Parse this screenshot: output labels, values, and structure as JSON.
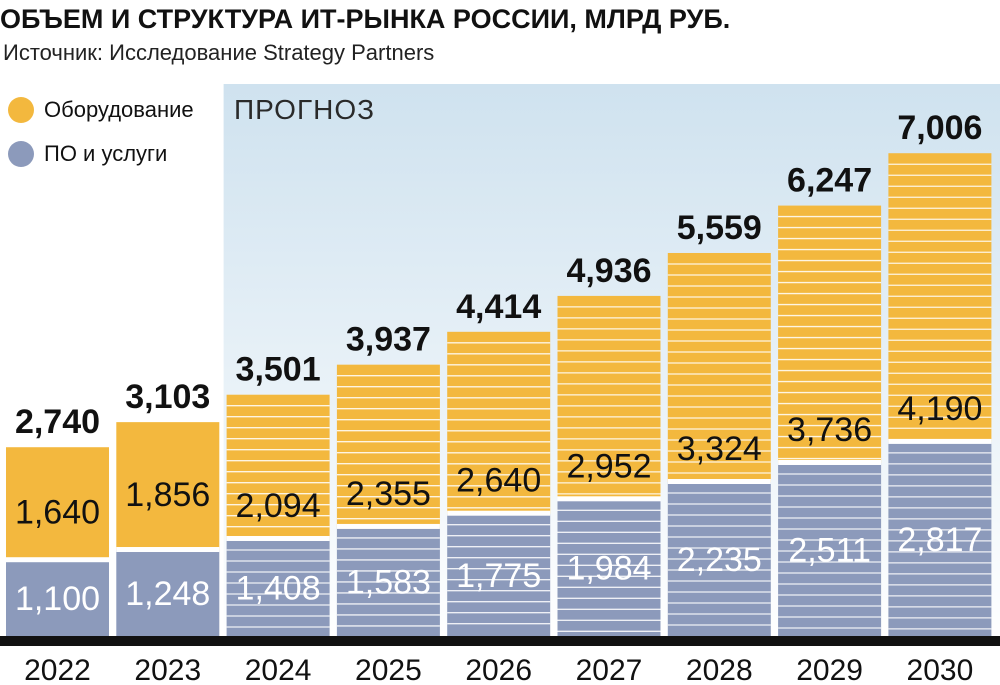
{
  "header": {
    "title": "ОБЪЕМ И СТРУКТУРА ИТ-РЫНКА РОССИИ, МЛРД РУБ.",
    "source": "Источник: Исследование Strategy Partners"
  },
  "forecast_label": "ПРОГНОЗ",
  "colors": {
    "hardware": "#f3b83e",
    "software": "#8c9abb",
    "forecast_bg": "#cfe2ef",
    "baseline": "#111111",
    "stripe": "#ffffff"
  },
  "chart_data": {
    "type": "bar",
    "stacked": true,
    "title": "ОБЪЕМ И СТРУКТУРА ИТ-РЫНКА РОССИИ, МЛРД РУБ.",
    "categories": [
      "2022",
      "2023",
      "2024",
      "2025",
      "2026",
      "2027",
      "2028",
      "2029",
      "2030"
    ],
    "series": [
      {
        "name": "ПО и услуги",
        "color": "#8c9abb",
        "values": [
          1100,
          1248,
          1408,
          1583,
          1775,
          1984,
          2235,
          2511,
          2817
        ],
        "labels": [
          "1,100",
          "1,248",
          "1,408",
          "1,583",
          "1,775",
          "1,984",
          "2,235",
          "2,511",
          "2,817"
        ]
      },
      {
        "name": "Оборудование",
        "color": "#f3b83e",
        "values": [
          1640,
          1856,
          2094,
          2355,
          2640,
          2952,
          3324,
          3736,
          4190
        ],
        "labels": [
          "1,640",
          "1,856",
          "2,094",
          "2,355",
          "2,640",
          "2,952",
          "3,324",
          "3,736",
          "4,190"
        ]
      }
    ],
    "totals": [
      2740,
      3103,
      3501,
      3937,
      4414,
      4936,
      5559,
      6247,
      7006
    ],
    "total_labels": [
      "2,740",
      "3,103",
      "3,501",
      "3,937",
      "4,414",
      "4,936",
      "5,559",
      "6,247",
      "7,006"
    ],
    "forecast_from": "2024",
    "legend": "top-left",
    "grid": false
  }
}
